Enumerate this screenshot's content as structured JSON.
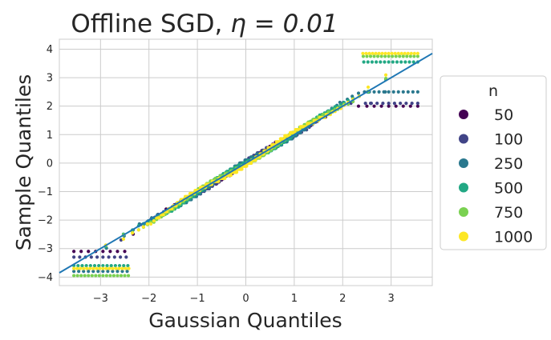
{
  "chart_data": {
    "type": "scatter",
    "title": "Offline SGD, ",
    "title_math": "η = 0.01",
    "xlabel": "Gaussian Quantiles",
    "ylabel": "Sample Quantiles",
    "xlim": [
      -3.85,
      3.85
    ],
    "ylim": [
      -4.3,
      4.35
    ],
    "xticks": [
      -3,
      -2,
      -1,
      0,
      1,
      2,
      3
    ],
    "yticks": [
      -4,
      -3,
      -2,
      -1,
      0,
      1,
      2,
      3,
      4
    ],
    "xtick_labels": [
      "−3",
      "−2",
      "−1",
      "0",
      "1",
      "2",
      "3"
    ],
    "ytick_labels": [
      "−4",
      "−3",
      "−2",
      "−1",
      "0",
      "1",
      "2",
      "3",
      "4"
    ],
    "grid": true,
    "reference_line": {
      "slope": 1.0,
      "intercept": 0.0,
      "color": "#1f77b4"
    },
    "legend": {
      "title": "n",
      "placement": "outside-right"
    },
    "series": [
      {
        "name": "50",
        "color": "#440154",
        "tail_low": -3.1,
        "tail_high": 2.0,
        "n_points": 50
      },
      {
        "name": "100",
        "color": "#414487",
        "tail_low": -3.3,
        "tail_high": 2.1,
        "n_points": 100
      },
      {
        "name": "250",
        "color": "#2a788e",
        "tail_low": -3.8,
        "tail_high": 2.5,
        "n_points": 250
      },
      {
        "name": "500",
        "color": "#22a884",
        "tail_low": -3.6,
        "tail_high": 3.55,
        "n_points": 500
      },
      {
        "name": "750",
        "color": "#7ad151",
        "tail_low": -3.95,
        "tail_high": 3.75,
        "n_points": 750
      },
      {
        "name": "1000",
        "color": "#fde725",
        "tail_low": -3.7,
        "tail_high": 3.85,
        "n_points": 1000
      }
    ]
  }
}
